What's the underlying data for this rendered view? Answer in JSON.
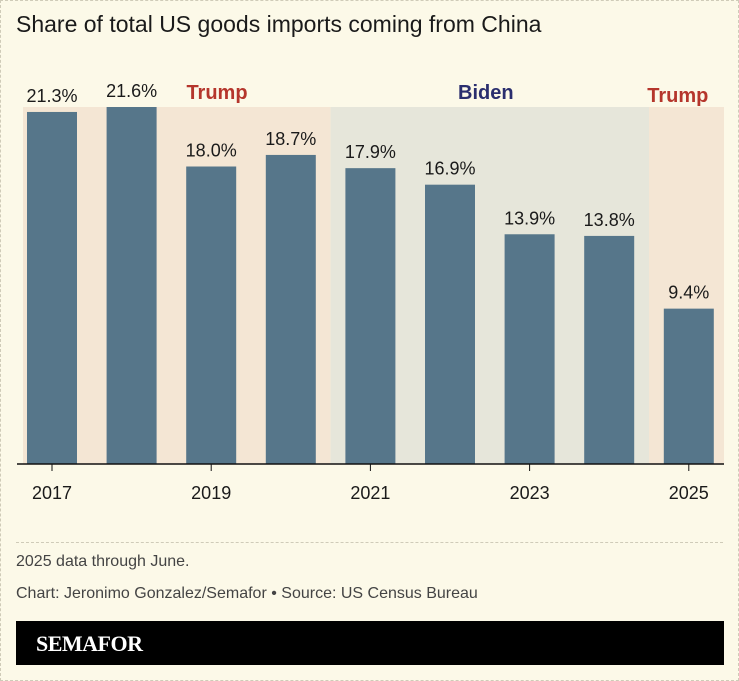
{
  "title": "Share of total US goods imports coming from China",
  "chart_data": {
    "type": "bar",
    "categories": [
      "2017",
      "2018",
      "2019",
      "2020",
      "2021",
      "2022",
      "2023",
      "2024",
      "2025"
    ],
    "values": [
      21.3,
      21.6,
      18.0,
      18.7,
      17.9,
      16.9,
      13.9,
      13.8,
      9.4
    ],
    "data_labels": [
      "21.3%",
      "21.6%",
      "18.0%",
      "18.7%",
      "17.9%",
      "16.9%",
      "13.9%",
      "13.8%",
      "9.4%"
    ],
    "x_tick_labels": [
      "2017",
      "2019",
      "2021",
      "2023",
      "2025"
    ],
    "ylim": [
      0,
      21.6
    ],
    "grid": false,
    "bar_color": "#56768a",
    "annotations": [
      {
        "label": "Trump",
        "from": "2017",
        "to": "2020",
        "color": "#b5362c",
        "band_color": "#f4e6d4"
      },
      {
        "label": "Biden",
        "from": "2021",
        "to": "2024",
        "color": "#2a2e6e",
        "band_color": "#e6e6da"
      },
      {
        "label": "Trump",
        "from": "2025",
        "to": "2025",
        "color": "#b5362c",
        "band_color": "#f4e6d4"
      }
    ]
  },
  "notes": [
    "2025 data through June.",
    "Chart: Jeronimo Gonzalez/Semafor • Source: US Census Bureau"
  ],
  "logo": "SEMAFOR"
}
